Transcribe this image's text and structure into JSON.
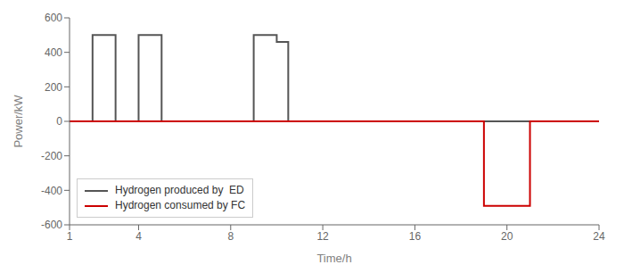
{
  "chart_data": {
    "type": "line",
    "xlabel": "Time/h",
    "ylabel": "Power/kW",
    "xlim": [
      1,
      24
    ],
    "xticks": [
      1,
      4,
      8,
      12,
      16,
      20,
      24
    ],
    "ylim": [
      -600,
      600
    ],
    "yticks": [
      -600,
      -400,
      -200,
      0,
      200,
      400,
      600
    ],
    "grid": false,
    "legend": "lower left",
    "series": [
      {
        "name": "Hydrogen produced by  ED",
        "color": "#555555",
        "x": [
          1,
          2,
          2,
          3,
          3,
          4,
          4,
          5,
          5,
          9,
          9,
          10,
          10,
          10.5,
          10.5,
          12,
          12,
          24
        ],
        "values": [
          0,
          0,
          500,
          500,
          0,
          0,
          500,
          500,
          0,
          0,
          500,
          500,
          460,
          460,
          0,
          0,
          0,
          0
        ]
      },
      {
        "name": "Hydrogen consumed by FC",
        "color": "#cc0000",
        "x": [
          1,
          19,
          19,
          21,
          21,
          24
        ],
        "values": [
          0,
          0,
          -490,
          -490,
          0,
          0
        ]
      }
    ]
  }
}
